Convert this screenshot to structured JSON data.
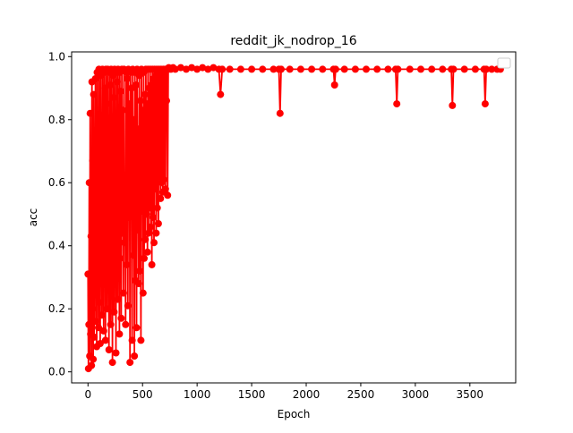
{
  "chart_data": {
    "type": "line",
    "title": "reddit_jk_nodrop_16",
    "xlabel": "Epoch",
    "ylabel": "acc",
    "xlim": [
      -150,
      3920
    ],
    "ylim": [
      -0.035,
      1.015
    ],
    "xticks": [
      0,
      500,
      1000,
      1500,
      2000,
      2500,
      3000,
      3500
    ],
    "yticks": [
      0.0,
      0.2,
      0.4,
      0.6,
      0.8,
      1.0
    ],
    "xtick_labels": [
      "0",
      "500",
      "1000",
      "1500",
      "2000",
      "2500",
      "3000",
      "3500"
    ],
    "ytick_labels": [
      "0.0",
      "0.2",
      "0.4",
      "0.6",
      "0.8",
      "1.0"
    ],
    "grid": false,
    "legend": {
      "position": "top-right",
      "entries": [
        ""
      ]
    },
    "series": [
      {
        "name": "acc",
        "color": "#ff0000",
        "marker": "o",
        "points": [
          [
            0,
            0.31
          ],
          [
            4,
            0.01
          ],
          [
            8,
            0.15
          ],
          [
            12,
            0.6
          ],
          [
            16,
            0.05
          ],
          [
            20,
            0.82
          ],
          [
            24,
            0.12
          ],
          [
            28,
            0.43
          ],
          [
            32,
            0.02
          ],
          [
            36,
            0.92
          ],
          [
            40,
            0.2
          ],
          [
            44,
            0.67
          ],
          [
            48,
            0.04
          ],
          [
            52,
            0.88
          ],
          [
            56,
            0.11
          ],
          [
            60,
            0.55
          ],
          [
            64,
            0.3
          ],
          [
            68,
            0.93
          ],
          [
            72,
            0.16
          ],
          [
            76,
            0.72
          ],
          [
            80,
            0.08
          ],
          [
            84,
            0.95
          ],
          [
            88,
            0.35
          ],
          [
            92,
            0.58
          ],
          [
            96,
            0.14
          ],
          [
            100,
            0.96
          ],
          [
            104,
            0.22
          ],
          [
            108,
            0.81
          ],
          [
            112,
            0.09
          ],
          [
            116,
            0.94
          ],
          [
            120,
            0.4
          ],
          [
            124,
            0.69
          ],
          [
            128,
            0.18
          ],
          [
            132,
            0.96
          ],
          [
            136,
            0.5
          ],
          [
            140,
            0.76
          ],
          [
            144,
            0.13
          ],
          [
            148,
            0.95
          ],
          [
            152,
            0.28
          ],
          [
            156,
            0.9
          ],
          [
            160,
            0.1
          ],
          [
            164,
            0.96
          ],
          [
            168,
            0.47
          ],
          [
            172,
            0.85
          ],
          [
            176,
            0.2
          ],
          [
            180,
            0.96
          ],
          [
            184,
            0.33
          ],
          [
            188,
            0.64
          ],
          [
            192,
            0.07
          ],
          [
            196,
            0.95
          ],
          [
            200,
            0.26
          ],
          [
            204,
            0.91
          ],
          [
            208,
            0.15
          ],
          [
            212,
            0.96
          ],
          [
            216,
            0.39
          ],
          [
            220,
            0.74
          ],
          [
            224,
            0.03
          ],
          [
            228,
            0.94
          ],
          [
            232,
            0.56
          ],
          [
            236,
            0.87
          ],
          [
            240,
            0.19
          ],
          [
            244,
            0.96
          ],
          [
            248,
            0.45
          ],
          [
            252,
            0.79
          ],
          [
            256,
            0.06
          ],
          [
            260,
            0.95
          ],
          [
            264,
            0.31
          ],
          [
            268,
            0.92
          ],
          [
            272,
            0.23
          ],
          [
            276,
            0.96
          ],
          [
            280,
            0.52
          ],
          [
            284,
            0.68
          ],
          [
            288,
            0.12
          ],
          [
            292,
            0.95
          ],
          [
            296,
            0.36
          ],
          [
            300,
            0.89
          ],
          [
            305,
            0.17
          ],
          [
            310,
            0.96
          ],
          [
            315,
            0.44
          ],
          [
            320,
            0.83
          ],
          [
            325,
            0.25
          ],
          [
            330,
            0.96
          ],
          [
            335,
            0.41
          ],
          [
            340,
            0.6
          ],
          [
            345,
            0.15
          ],
          [
            350,
            0.95
          ],
          [
            355,
            0.34
          ],
          [
            360,
            0.93
          ],
          [
            365,
            0.21
          ],
          [
            370,
            0.96
          ],
          [
            375,
            0.49
          ],
          [
            380,
            0.85
          ],
          [
            385,
            0.03
          ],
          [
            390,
            0.95
          ],
          [
            395,
            0.56
          ],
          [
            400,
            0.9
          ],
          [
            405,
            0.1
          ],
          [
            410,
            0.96
          ],
          [
            415,
            0.37
          ],
          [
            420,
            0.8
          ],
          [
            425,
            0.05
          ],
          [
            430,
            0.95
          ],
          [
            435,
            0.29
          ],
          [
            440,
            0.91
          ],
          [
            445,
            0.14
          ],
          [
            450,
            0.96
          ],
          [
            455,
            0.45
          ],
          [
            460,
            0.77
          ],
          [
            465,
            0.28
          ],
          [
            470,
            0.94
          ],
          [
            475,
            0.32
          ],
          [
            480,
            0.86
          ],
          [
            485,
            0.1
          ],
          [
            490,
            0.96
          ],
          [
            495,
            0.51
          ],
          [
            500,
            0.83
          ],
          [
            505,
            0.25
          ],
          [
            510,
            0.95
          ],
          [
            515,
            0.36
          ],
          [
            520,
            0.88
          ],
          [
            525,
            0.42
          ],
          [
            530,
            0.96
          ],
          [
            535,
            0.5
          ],
          [
            540,
            0.85
          ],
          [
            545,
            0.38
          ],
          [
            550,
            0.96
          ],
          [
            555,
            0.44
          ],
          [
            560,
            0.9
          ],
          [
            565,
            0.52
          ],
          [
            570,
            0.96
          ],
          [
            575,
            0.46
          ],
          [
            580,
            0.91
          ],
          [
            585,
            0.34
          ],
          [
            590,
            0.96
          ],
          [
            595,
            0.49
          ],
          [
            600,
            0.93
          ],
          [
            605,
            0.41
          ],
          [
            610,
            0.96
          ],
          [
            615,
            0.58
          ],
          [
            620,
            0.94
          ],
          [
            625,
            0.44
          ],
          [
            630,
            0.96
          ],
          [
            635,
            0.52
          ],
          [
            640,
            0.95
          ],
          [
            645,
            0.47
          ],
          [
            650,
            0.96
          ],
          [
            655,
            0.62
          ],
          [
            660,
            0.94
          ],
          [
            665,
            0.55
          ],
          [
            670,
            0.96
          ],
          [
            675,
            0.6
          ],
          [
            680,
            0.95
          ],
          [
            685,
            0.57
          ],
          [
            690,
            0.96
          ],
          [
            695,
            0.61
          ],
          [
            700,
            0.82
          ],
          [
            705,
            0.96
          ],
          [
            710,
            0.58
          ],
          [
            715,
            0.96
          ],
          [
            720,
            0.86
          ],
          [
            725,
            0.96
          ],
          [
            730,
            0.56
          ],
          [
            735,
            0.96
          ],
          [
            740,
            0.965
          ],
          [
            760,
            0.96
          ],
          [
            780,
            0.965
          ],
          [
            800,
            0.96
          ],
          [
            850,
            0.965
          ],
          [
            900,
            0.96
          ],
          [
            950,
            0.965
          ],
          [
            1000,
            0.96
          ],
          [
            1050,
            0.965
          ],
          [
            1100,
            0.96
          ],
          [
            1150,
            0.965
          ],
          [
            1200,
            0.96
          ],
          [
            1215,
            0.88
          ],
          [
            1230,
            0.96
          ],
          [
            1300,
            0.96
          ],
          [
            1400,
            0.96
          ],
          [
            1500,
            0.96
          ],
          [
            1600,
            0.96
          ],
          [
            1700,
            0.96
          ],
          [
            1750,
            0.96
          ],
          [
            1760,
            0.82
          ],
          [
            1770,
            0.96
          ],
          [
            1850,
            0.96
          ],
          [
            1950,
            0.96
          ],
          [
            2050,
            0.96
          ],
          [
            2150,
            0.96
          ],
          [
            2250,
            0.96
          ],
          [
            2260,
            0.91
          ],
          [
            2270,
            0.96
          ],
          [
            2350,
            0.96
          ],
          [
            2450,
            0.96
          ],
          [
            2550,
            0.96
          ],
          [
            2650,
            0.96
          ],
          [
            2750,
            0.96
          ],
          [
            2820,
            0.96
          ],
          [
            2830,
            0.85
          ],
          [
            2840,
            0.96
          ],
          [
            2950,
            0.96
          ],
          [
            3050,
            0.96
          ],
          [
            3150,
            0.96
          ],
          [
            3250,
            0.96
          ],
          [
            3330,
            0.96
          ],
          [
            3340,
            0.845
          ],
          [
            3350,
            0.96
          ],
          [
            3450,
            0.96
          ],
          [
            3550,
            0.96
          ],
          [
            3630,
            0.96
          ],
          [
            3640,
            0.85
          ],
          [
            3650,
            0.96
          ],
          [
            3700,
            0.96
          ],
          [
            3750,
            0.96
          ],
          [
            3780,
            0.96
          ]
        ]
      }
    ]
  }
}
